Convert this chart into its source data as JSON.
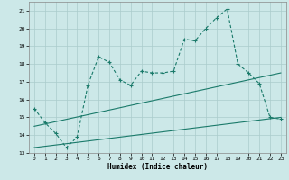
{
  "xlabel": "Humidex (Indice chaleur)",
  "bg_color": "#cce8e8",
  "grid_color": "#aacccc",
  "line_color": "#1a7a6a",
  "xlim": [
    -0.5,
    23.5
  ],
  "ylim": [
    13,
    21.5
  ],
  "yticks": [
    13,
    14,
    15,
    16,
    17,
    18,
    19,
    20,
    21
  ],
  "xticks": [
    0,
    1,
    2,
    3,
    4,
    5,
    6,
    7,
    8,
    9,
    10,
    11,
    12,
    13,
    14,
    15,
    16,
    17,
    18,
    19,
    20,
    21,
    22,
    23
  ],
  "line1_x": [
    0,
    1,
    2,
    3,
    4,
    5,
    6,
    7,
    8,
    9,
    10,
    11,
    12,
    13,
    14,
    15,
    16,
    17,
    18,
    19,
    20,
    21,
    22,
    23
  ],
  "line1_y": [
    15.5,
    14.7,
    14.1,
    13.3,
    13.9,
    16.8,
    18.4,
    18.1,
    17.1,
    16.8,
    17.6,
    17.5,
    17.5,
    17.6,
    19.4,
    19.3,
    20.0,
    20.6,
    21.1,
    18.0,
    17.5,
    16.9,
    15.0,
    14.9
  ],
  "line2_x": [
    0,
    23
  ],
  "line2_y": [
    14.5,
    17.5
  ],
  "line3_x": [
    0,
    23
  ],
  "line3_y": [
    13.3,
    15.0
  ]
}
